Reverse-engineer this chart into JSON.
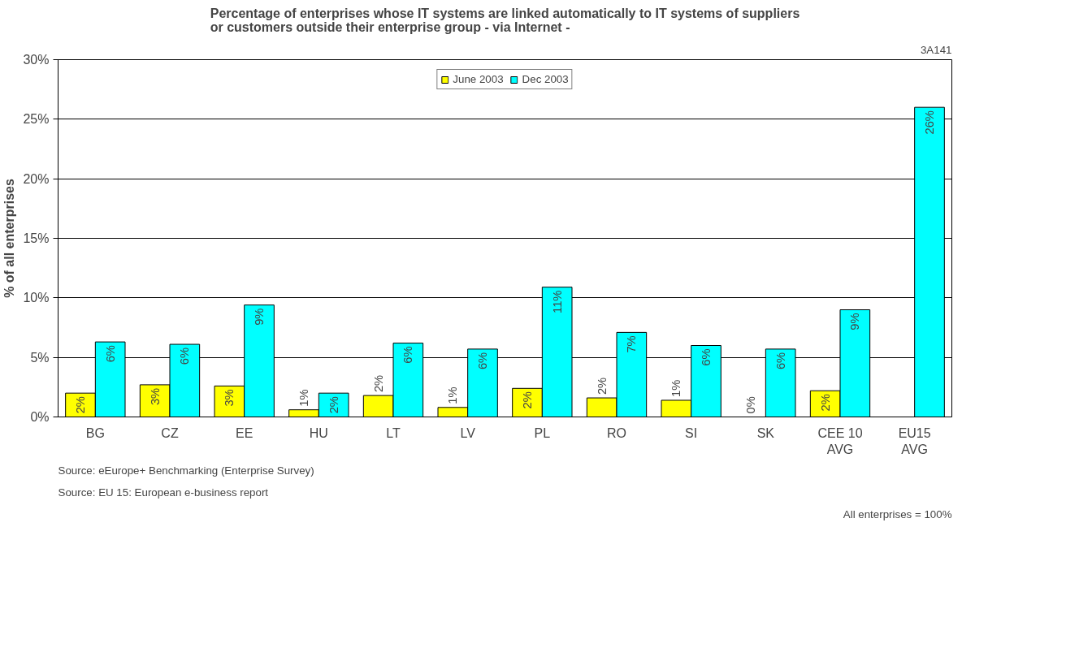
{
  "chart_data": {
    "type": "bar",
    "title": "Percentage of enterprises whose IT systems are linked automatically to IT systems of suppliers or customers outside their enterprise group - via Internet -",
    "ylabel": "% of all enterprises",
    "categories": [
      "BG",
      "CZ",
      "EE",
      "HU",
      "LT",
      "LV",
      "PL",
      "RO",
      "SI",
      "SK",
      "CEE 10 AVG",
      "EU15 AVG"
    ],
    "series": [
      {
        "name": "June 2003",
        "color": "#ffff00",
        "values": [
          2.0,
          2.7,
          2.6,
          0.6,
          1.8,
          0.8,
          2.4,
          1.6,
          1.4,
          0,
          2.2,
          null
        ],
        "value_labels": [
          "2%",
          "3%",
          "3%",
          "1%",
          "2%",
          "1%",
          "2%",
          "2%",
          "1%",
          "0%",
          "2%",
          null
        ]
      },
      {
        "name": "Dec 2003",
        "color": "#00ffff",
        "values": [
          6.3,
          6.1,
          9.4,
          2.0,
          6.2,
          5.7,
          10.9,
          7.1,
          6.0,
          5.7,
          9.0,
          26.0
        ],
        "value_labels": [
          "6%",
          "6%",
          "9%",
          "2%",
          "6%",
          "6%",
          "11%",
          "7%",
          "6%",
          "6%",
          "9%",
          "26%"
        ]
      }
    ],
    "ylim": [
      0,
      30
    ],
    "yticks": [
      {
        "value": 0,
        "label": "0%"
      },
      {
        "value": 5,
        "label": "5%"
      },
      {
        "value": 10,
        "label": "10%"
      },
      {
        "value": 15,
        "label": "15%"
      },
      {
        "value": 20,
        "label": "20%"
      },
      {
        "value": 25,
        "label": "25%"
      },
      {
        "value": 30,
        "label": "30%"
      }
    ],
    "grid": "y",
    "legend": "top",
    "annotations": [
      "3A141",
      "Source: eEurope+ Benchmarking (Enterprise Survey)",
      "Source: EU 15: European e-business report",
      "All enterprises = 100%"
    ]
  }
}
